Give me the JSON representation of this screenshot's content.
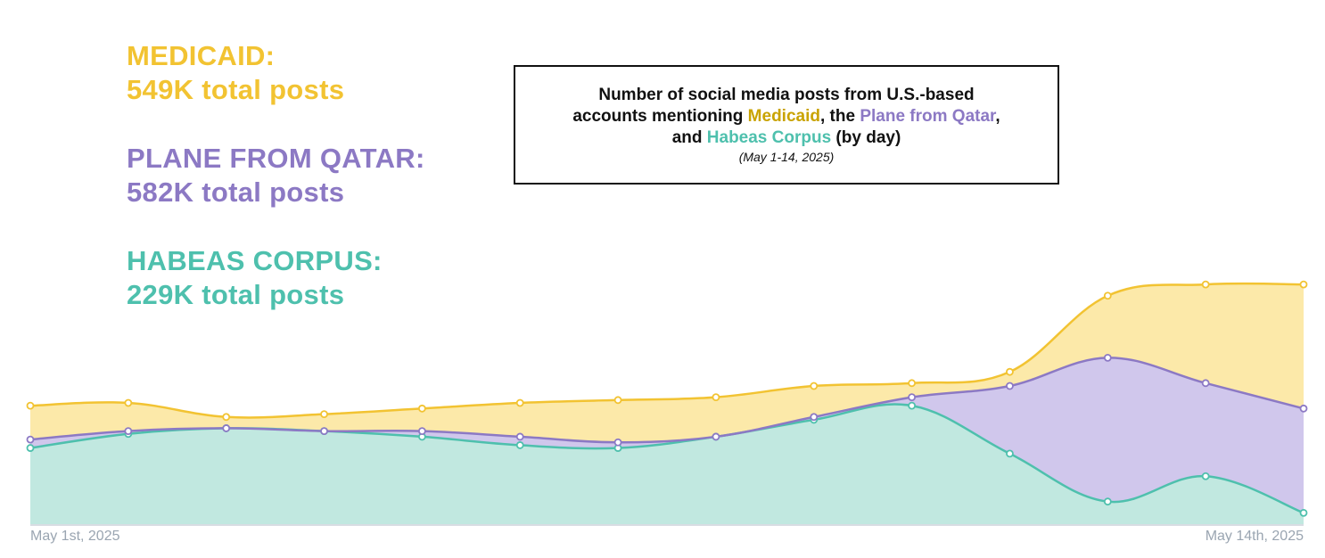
{
  "totals": [
    {
      "key": "medicaid",
      "label": "MEDICAID:",
      "value": "549K total posts",
      "color": "#f2c332"
    },
    {
      "key": "qatar",
      "label": "PLANE FROM QATAR:",
      "value": "582K total posts",
      "color": "#8c79c4"
    },
    {
      "key": "habeas",
      "label": "HABEAS CORPUS:",
      "value": "229K total posts",
      "color": "#4ec0ad"
    }
  ],
  "title": {
    "line1": "Number of social media posts from U.S.-based",
    "line2_pre": "accounts mentioning ",
    "medicaid": "Medicaid",
    "line2_mid": ", the ",
    "qatar": "Plane from Qatar",
    "line2_post": ",",
    "line3_pre": "and ",
    "habeas": "Habeas Corpus",
    "line3_post": " (by day)",
    "subtitle": "(May 1-14,  2025)",
    "colors": {
      "medicaid": "#c9a300",
      "qatar": "#8c79c4",
      "habeas": "#4ec0ad"
    }
  },
  "chart_data": {
    "type": "area",
    "stacked": true,
    "x": [
      "2025-05-01",
      "2025-05-02",
      "2025-05-03",
      "2025-05-04",
      "2025-05-05",
      "2025-05-06",
      "2025-05-07",
      "2025-05-08",
      "2025-05-09",
      "2025-05-10",
      "2025-05-11",
      "2025-05-12",
      "2025-05-13",
      "2025-05-14"
    ],
    "x_tick_labels": [
      "May 1st, 2025",
      "May 14th, 2025"
    ],
    "ylim": [
      0,
      110
    ],
    "grid": false,
    "series": [
      {
        "name": "Habeas Corpus",
        "color": "#4ec0ad",
        "fill": "#c1e8e0",
        "values": [
          27,
          32,
          34,
          33,
          31,
          28,
          27,
          31,
          37,
          42,
          25,
          8,
          17,
          4
        ]
      },
      {
        "name": "Plane from Qatar",
        "color": "#8c79c4",
        "fill": "#d0c7ec",
        "values": [
          3,
          1,
          0,
          0,
          2,
          3,
          2,
          0,
          1,
          3,
          24,
          51,
          33,
          37
        ]
      },
      {
        "name": "Medicaid",
        "color": "#f2c332",
        "fill": "#fce9a9",
        "values": [
          12,
          10,
          4,
          6,
          8,
          12,
          15,
          14,
          11,
          5,
          5,
          22,
          35,
          44
        ]
      }
    ]
  }
}
